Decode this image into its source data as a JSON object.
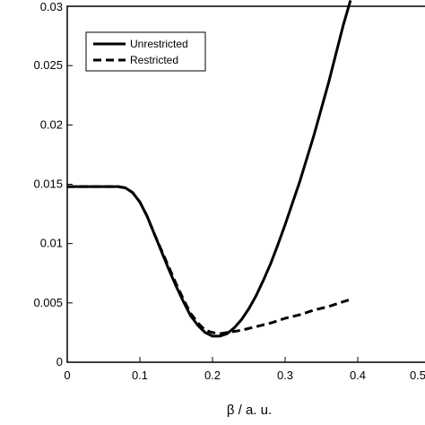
{
  "chart_data": {
    "type": "line",
    "xlabel": "β / a. u.",
    "ylabel": "",
    "xlim": [
      0,
      0.5
    ],
    "ylim": [
      0,
      0.03
    ],
    "x_ticks": [
      "0",
      "0.1",
      "0.2",
      "0.3",
      "0.4",
      "0.5"
    ],
    "y_ticks": [
      "0",
      "0.005",
      "0.01",
      "0.015",
      "0.02",
      "0.025",
      "0.03"
    ],
    "legend_position": "top-left",
    "grid": false,
    "series": [
      {
        "name": "Unrestricted",
        "style": "solid",
        "color": "#000000",
        "points": [
          [
            0,
            0.0148
          ],
          [
            0.05,
            0.0148
          ],
          [
            0.07,
            0.0148
          ],
          [
            0.08,
            0.0147
          ],
          [
            0.09,
            0.0143
          ],
          [
            0.1,
            0.0135
          ],
          [
            0.11,
            0.0123
          ],
          [
            0.12,
            0.0108
          ],
          [
            0.13,
            0.0093
          ],
          [
            0.14,
            0.0078
          ],
          [
            0.15,
            0.0064
          ],
          [
            0.16,
            0.0051
          ],
          [
            0.17,
            0.0039
          ],
          [
            0.18,
            0.0031
          ],
          [
            0.19,
            0.0025
          ],
          [
            0.2,
            0.0022
          ],
          [
            0.21,
            0.0022
          ],
          [
            0.22,
            0.0024
          ],
          [
            0.23,
            0.0029
          ],
          [
            0.24,
            0.0036
          ],
          [
            0.25,
            0.0045
          ],
          [
            0.26,
            0.0056
          ],
          [
            0.27,
            0.0069
          ],
          [
            0.28,
            0.0083
          ],
          [
            0.29,
            0.0099
          ],
          [
            0.3,
            0.0116
          ],
          [
            0.32,
            0.0152
          ],
          [
            0.34,
            0.0192
          ],
          [
            0.36,
            0.0236
          ],
          [
            0.38,
            0.0284
          ],
          [
            0.39,
            0.0305
          ]
        ]
      },
      {
        "name": "Restricted",
        "style": "dashed",
        "color": "#000000",
        "points": [
          [
            0,
            0.0148
          ],
          [
            0.05,
            0.0148
          ],
          [
            0.07,
            0.0148
          ],
          [
            0.08,
            0.0147
          ],
          [
            0.09,
            0.0143
          ],
          [
            0.1,
            0.0135
          ],
          [
            0.11,
            0.0123
          ],
          [
            0.12,
            0.0108
          ],
          [
            0.13,
            0.0094
          ],
          [
            0.14,
            0.008
          ],
          [
            0.15,
            0.0066
          ],
          [
            0.16,
            0.0053
          ],
          [
            0.17,
            0.0041
          ],
          [
            0.18,
            0.0033
          ],
          [
            0.19,
            0.0027
          ],
          [
            0.2,
            0.0025
          ],
          [
            0.21,
            0.0024
          ],
          [
            0.22,
            0.0025
          ],
          [
            0.23,
            0.0026
          ],
          [
            0.24,
            0.0027
          ],
          [
            0.26,
            0.003
          ],
          [
            0.28,
            0.0033
          ],
          [
            0.3,
            0.0037
          ],
          [
            0.32,
            0.004
          ],
          [
            0.34,
            0.0044
          ],
          [
            0.36,
            0.0047
          ],
          [
            0.38,
            0.0051
          ],
          [
            0.39,
            0.0053
          ]
        ]
      }
    ]
  }
}
